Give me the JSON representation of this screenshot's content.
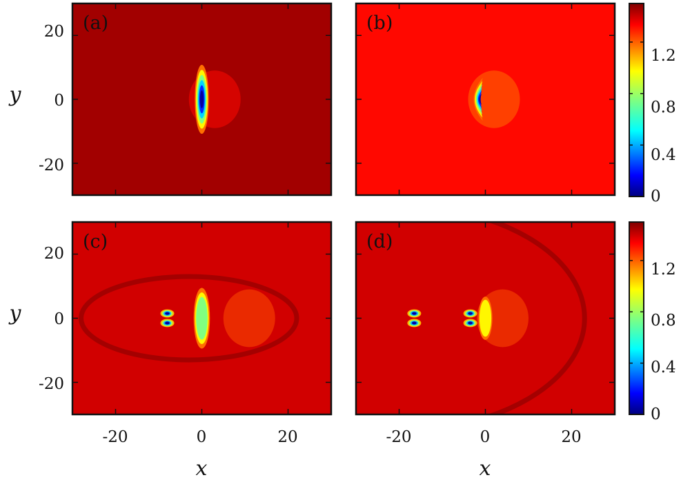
{
  "chart_data": {
    "type": "heatmap",
    "colormap": "jet",
    "color_range": [
      0,
      1.5
    ],
    "x_range": [
      -30,
      30
    ],
    "y_range": [
      -30,
      30
    ],
    "x_ticks": [
      -20,
      0,
      20
    ],
    "y_ticks": [
      20,
      0,
      -20
    ],
    "x_tick_labels": [
      "-20",
      "0",
      "20"
    ],
    "y_tick_labels": [
      "20",
      "0",
      "-20"
    ],
    "xlabel": "x",
    "ylabel": "y",
    "panels": [
      {
        "label": "(a)",
        "background_value": 1.45,
        "features": [
          {
            "kind": "vertical-soliton",
            "x": 0,
            "y": 0,
            "half_width": 1.2,
            "half_height": 8,
            "min_value": 0.0
          },
          {
            "kind": "density-dip",
            "x": 3,
            "y": 0,
            "value": 1.3
          }
        ]
      },
      {
        "label": "(b)",
        "background_value": 1.3,
        "features": [
          {
            "kind": "crescent-soliton",
            "x": -1,
            "y": 0,
            "half_width": 1.5,
            "half_height": 5,
            "min_value": 0.0
          },
          {
            "kind": "density-dip",
            "x": 2,
            "y": 0,
            "value": 1.15
          }
        ]
      },
      {
        "label": "(c)",
        "background_value": 1.38,
        "features": [
          {
            "kind": "vortex-pair",
            "x": -8,
            "y": 0,
            "separation": 3,
            "min_value": 0.0
          },
          {
            "kind": "vertical-soliton",
            "x": 0,
            "y": 0,
            "half_width": 1.4,
            "half_height": 7,
            "min_value": 0.6
          },
          {
            "kind": "sound-ring",
            "x": -3,
            "y": 0,
            "radius_x": 25,
            "radius_y": 13,
            "value": 1.55
          },
          {
            "kind": "density-dip",
            "x": 11,
            "y": 0,
            "value": 1.2
          }
        ]
      },
      {
        "label": "(d)",
        "background_value": 1.38,
        "features": [
          {
            "kind": "vortex-pair",
            "x": -16.5,
            "y": 0,
            "separation": 3,
            "min_value": 0.0
          },
          {
            "kind": "vortex-pair",
            "x": -3.5,
            "y": 0,
            "separation": 3,
            "min_value": 0.0
          },
          {
            "kind": "vertical-soliton",
            "x": 0,
            "y": 0,
            "half_width": 1.2,
            "half_height": 5,
            "min_value": 0.9
          },
          {
            "kind": "sound-ring",
            "x": -20,
            "y": 0,
            "radius_x": 43,
            "radius_y": 35,
            "value": 1.55
          },
          {
            "kind": "density-dip",
            "x": 4,
            "y": 0,
            "value": 1.2
          }
        ]
      }
    ],
    "colorbars": [
      {
        "tick_values": [
          0,
          0.4,
          0.8,
          1.2
        ],
        "tick_labels": [
          "0",
          "0.4",
          "0.8",
          "1.2"
        ]
      },
      {
        "tick_values": [
          0,
          0.4,
          0.8,
          1.2
        ],
        "tick_labels": [
          "0",
          "0.4",
          "0.8",
          "1.2"
        ]
      }
    ]
  }
}
